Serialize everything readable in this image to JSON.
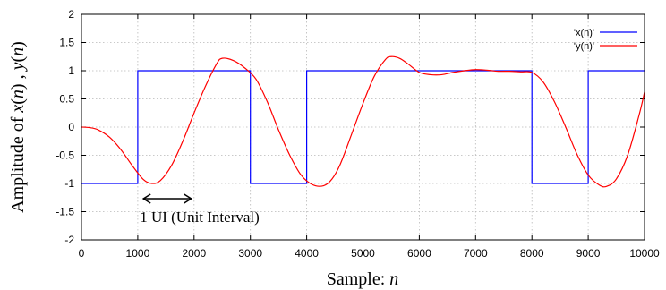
{
  "chart_data": {
    "type": "line",
    "xlabel_prefix": "Sample: ",
    "xlabel_var": "n",
    "ylabel_parts": [
      "Amplitude of ",
      "x",
      "(",
      "n",
      ") , ",
      "y",
      "(",
      "n",
      ")"
    ],
    "xlim": [
      0,
      10000
    ],
    "ylim": [
      -2,
      2
    ],
    "xticks": [
      0,
      1000,
      2000,
      3000,
      4000,
      5000,
      6000,
      7000,
      8000,
      9000,
      10000
    ],
    "yticks": [
      -2,
      -1.5,
      -1,
      -0.5,
      0,
      0.5,
      1,
      1.5,
      2
    ],
    "xtick_labels": [
      "0",
      "1000",
      "2000",
      "3000",
      "4000",
      "5000",
      "6000",
      "7000",
      "8000",
      "9000",
      "10000"
    ],
    "ytick_labels": [
      "-2",
      "-1.5",
      "-1",
      "-0.5",
      "0",
      "0.5",
      "1",
      "1.5",
      "2"
    ],
    "grid": true,
    "legend_position": "top-right",
    "series": [
      {
        "name": "'x(n)'",
        "color": "#0000ff",
        "step": true,
        "x": [
          1000,
          1000,
          3000,
          3000,
          4000,
          4000,
          8000,
          8000,
          9000,
          9000,
          10000
        ],
        "y": [
          -1,
          1,
          1,
          -1,
          -1,
          1,
          1,
          -1,
          -1,
          1,
          1
        ],
        "x_start": 0,
        "y_start": -1
      },
      {
        "name": "'y(n)'",
        "color": "#ff0000",
        "step": false,
        "x": [
          0,
          150,
          300,
          500,
          700,
          900,
          1100,
          1250,
          1400,
          1600,
          1800,
          2000,
          2200,
          2400,
          2500,
          2700,
          2900,
          3100,
          3300,
          3500,
          3700,
          3900,
          4100,
          4300,
          4450,
          4600,
          4800,
          5000,
          5200,
          5400,
          5500,
          5650,
          5800,
          6000,
          6200,
          6400,
          6600,
          6800,
          7000,
          7200,
          7400,
          7600,
          7800,
          8000,
          8200,
          8400,
          8600,
          8800,
          9000,
          9200,
          9330,
          9500,
          9700,
          9900,
          10000
        ],
        "y": [
          0,
          -0.01,
          -0.05,
          -0.18,
          -0.4,
          -0.68,
          -0.93,
          -1.0,
          -0.95,
          -0.68,
          -0.25,
          0.25,
          0.72,
          1.12,
          1.22,
          1.18,
          1.05,
          0.85,
          0.45,
          -0.05,
          -0.5,
          -0.85,
          -1.02,
          -1.04,
          -0.92,
          -0.65,
          -0.12,
          0.42,
          0.9,
          1.2,
          1.25,
          1.22,
          1.12,
          0.97,
          0.93,
          0.93,
          0.97,
          1.0,
          1.02,
          1.01,
          0.99,
          0.99,
          0.98,
          0.97,
          0.8,
          0.45,
          0.0,
          -0.48,
          -0.85,
          -1.03,
          -1.05,
          -0.92,
          -0.5,
          0.2,
          0.62
        ]
      }
    ],
    "annotation": {
      "text": "1 UI (Unit Interval)",
      "arrow_from": 1100,
      "arrow_to": 1950,
      "arrow_y": -1.27
    }
  }
}
